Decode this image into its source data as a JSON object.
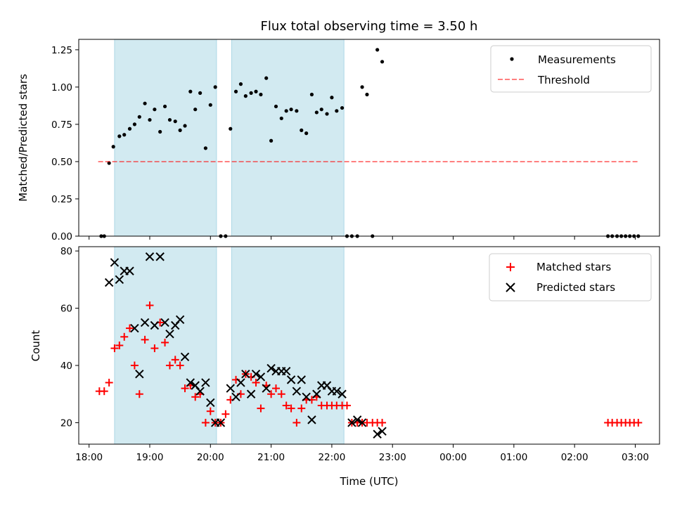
{
  "figure": {
    "title": "Flux total observing time = 3.50 h",
    "xlabel": "Time (UTC)"
  },
  "colors": {
    "shade": "#add8e6",
    "measurement": "#000000",
    "threshold": "#ff0000",
    "matched": "#ff0000",
    "predicted": "#000000"
  },
  "chart_data": [
    {
      "type": "scatter",
      "panel": "top",
      "title": "Flux total observing time = 3.50 h",
      "xlabel": "",
      "ylabel": "Matched/Predicted stars",
      "x_unit": "hours since 18:00 UTC",
      "xlim": [
        -0.17,
        9.4
      ],
      "ylim": [
        0,
        1.32
      ],
      "yticks": [
        "0.00",
        "0.25",
        "0.50",
        "0.75",
        "1.00",
        "1.25"
      ],
      "ytick_values": [
        0,
        0.25,
        0.5,
        0.75,
        1.0,
        1.25
      ],
      "shaded_intervals": [
        [
          0.42,
          2.1
        ],
        [
          2.35,
          4.2
        ]
      ],
      "legend_position": "top-right",
      "series": [
        {
          "name": "Measurements",
          "marker": "dot",
          "x": [
            0.2,
            0.25,
            0.33,
            0.4,
            0.5,
            0.58,
            0.67,
            0.75,
            0.83,
            0.92,
            1.0,
            1.08,
            1.17,
            1.25,
            1.33,
            1.42,
            1.5,
            1.58,
            1.67,
            1.75,
            1.83,
            1.92,
            2.0,
            2.08,
            2.17,
            2.25,
            2.33,
            2.42,
            2.5,
            2.58,
            2.67,
            2.75,
            2.83,
            2.92,
            3.0,
            3.08,
            3.17,
            3.25,
            3.33,
            3.42,
            3.5,
            3.58,
            3.67,
            3.75,
            3.83,
            3.92,
            4.0,
            4.08,
            4.17,
            4.25,
            4.33,
            4.42,
            4.5,
            4.58,
            4.67,
            4.75,
            4.83,
            8.55,
            8.62,
            8.7,
            8.77,
            8.84,
            8.91,
            8.98,
            9.05
          ],
          "y": [
            0.0,
            0.0,
            0.49,
            0.6,
            0.67,
            0.68,
            0.72,
            0.75,
            0.8,
            0.89,
            0.78,
            0.85,
            0.7,
            0.87,
            0.78,
            0.77,
            0.71,
            0.74,
            0.97,
            0.85,
            0.96,
            0.59,
            0.88,
            1.0,
            0.0,
            0.0,
            0.72,
            0.97,
            1.02,
            0.94,
            0.96,
            0.97,
            0.95,
            1.06,
            0.64,
            0.87,
            0.79,
            0.84,
            0.85,
            0.84,
            0.71,
            0.69,
            0.95,
            0.83,
            0.85,
            0.82,
            0.93,
            0.84,
            0.86,
            0.0,
            0.0,
            0.0,
            1.0,
            0.95,
            0.0,
            1.25,
            1.17,
            0.0,
            0.0,
            0.0,
            0.0,
            0.0,
            0.0,
            0.0,
            0.0
          ]
        },
        {
          "name": "Threshold",
          "marker": "dashed-line",
          "x": [
            0.15,
            9.05
          ],
          "y": [
            0.5,
            0.5
          ]
        }
      ]
    },
    {
      "type": "scatter",
      "panel": "bottom",
      "xlabel": "Time (UTC)",
      "ylabel": "Count",
      "x_unit": "hours since 18:00 UTC",
      "xlim": [
        -0.17,
        9.4
      ],
      "ylim": [
        12.5,
        81.5
      ],
      "xticks": [
        "18:00",
        "19:00",
        "20:00",
        "21:00",
        "22:00",
        "23:00",
        "00:00",
        "01:00",
        "02:00",
        "03:00"
      ],
      "xtick_values": [
        0,
        1,
        2,
        3,
        4,
        5,
        6,
        7,
        8,
        9
      ],
      "yticks": [
        "20",
        "40",
        "60",
        "80"
      ],
      "ytick_values": [
        20,
        40,
        60,
        80
      ],
      "shaded_intervals": [
        [
          0.42,
          2.1
        ],
        [
          2.35,
          4.2
        ]
      ],
      "legend_position": "top-right",
      "series": [
        {
          "name": "Matched stars",
          "marker": "plus",
          "x": [
            0.17,
            0.25,
            0.33,
            0.42,
            0.5,
            0.58,
            0.67,
            0.75,
            0.83,
            0.92,
            1.0,
            1.08,
            1.17,
            1.25,
            1.33,
            1.42,
            1.5,
            1.58,
            1.67,
            1.75,
            1.83,
            1.92,
            2.0,
            2.08,
            2.17,
            2.25,
            2.33,
            2.42,
            2.5,
            2.58,
            2.67,
            2.75,
            2.83,
            2.92,
            3.0,
            3.08,
            3.17,
            3.25,
            3.33,
            3.42,
            3.5,
            3.58,
            3.67,
            3.75,
            3.83,
            3.92,
            4.0,
            4.08,
            4.17,
            4.25,
            4.33,
            4.42,
            4.5,
            4.58,
            4.67,
            4.75,
            4.83,
            8.55,
            8.62,
            8.7,
            8.77,
            8.84,
            8.91,
            8.98,
            9.05
          ],
          "y": [
            31,
            31,
            34,
            46,
            47,
            50,
            53,
            40,
            30,
            49,
            61,
            46,
            55,
            48,
            40,
            42,
            40,
            32,
            33,
            29,
            30,
            20,
            24,
            20,
            20,
            23,
            28,
            35,
            30,
            37,
            36,
            34,
            25,
            33,
            30,
            32,
            30,
            26,
            25,
            20,
            25,
            28,
            28,
            29,
            26,
            26,
            26,
            26,
            26,
            26,
            20,
            20,
            20,
            20,
            20,
            20,
            20,
            20,
            20,
            20,
            20,
            20,
            20,
            20,
            20
          ]
        },
        {
          "name": "Predicted stars",
          "marker": "x",
          "x": [
            0.33,
            0.42,
            0.5,
            0.58,
            0.67,
            0.75,
            0.83,
            0.92,
            1.0,
            1.08,
            1.17,
            1.25,
            1.33,
            1.42,
            1.5,
            1.58,
            1.67,
            1.75,
            1.83,
            1.92,
            2.0,
            2.08,
            2.17,
            2.33,
            2.42,
            2.5,
            2.58,
            2.67,
            2.75,
            2.83,
            2.92,
            3.0,
            3.08,
            3.17,
            3.25,
            3.33,
            3.42,
            3.5,
            3.58,
            3.67,
            3.75,
            3.83,
            3.92,
            4.0,
            4.08,
            4.17,
            4.33,
            4.42,
            4.5,
            4.75,
            4.83
          ],
          "y": [
            69,
            76,
            70,
            73,
            73,
            53,
            37,
            55,
            78,
            54,
            78,
            55,
            51,
            54,
            56,
            43,
            34,
            33,
            31,
            34,
            27,
            20,
            20,
            32,
            29,
            34,
            37,
            30,
            37,
            36,
            32,
            39,
            38,
            38,
            38,
            35,
            31,
            35,
            29,
            21,
            30,
            33,
            33,
            31,
            31,
            30,
            20,
            21,
            20,
            16,
            17
          ]
        }
      ]
    }
  ]
}
